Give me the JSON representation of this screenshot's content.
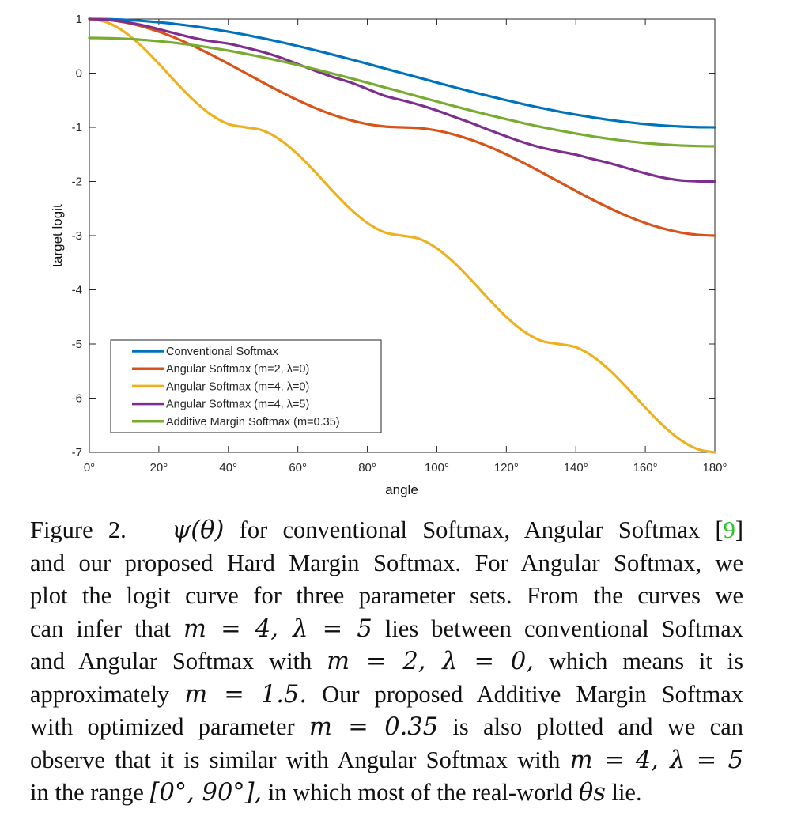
{
  "chart_data": {
    "type": "line",
    "xlabel": "angle",
    "ylabel": "target logit",
    "xlim": [
      0,
      180
    ],
    "ylim": [
      -7,
      1
    ],
    "x_ticks": [
      0,
      20,
      40,
      60,
      80,
      100,
      120,
      140,
      160,
      180
    ],
    "x_tick_labels": [
      "0°",
      "20°",
      "40°",
      "60°",
      "80°",
      "100°",
      "120°",
      "140°",
      "160°",
      "180°"
    ],
    "y_ticks": [
      1,
      0,
      -1,
      -2,
      -3,
      -4,
      -5,
      -6,
      -7
    ],
    "y_tick_labels": [
      "1",
      "0",
      "-1",
      "-2",
      "-3",
      "-4",
      "-5",
      "-6",
      "-7"
    ],
    "grid": false,
    "legend_position": "bottom-left",
    "x": [
      0,
      5,
      10,
      15,
      20,
      25,
      30,
      35,
      40,
      45,
      50,
      55,
      60,
      65,
      70,
      75,
      80,
      85,
      90,
      95,
      100,
      105,
      110,
      115,
      120,
      125,
      130,
      135,
      140,
      145,
      150,
      155,
      160,
      165,
      170,
      175,
      180
    ],
    "series": [
      {
        "name": "Conventional Softmax",
        "color": "#0072bd",
        "values": [
          1.0,
          0.996,
          0.985,
          0.966,
          0.94,
          0.906,
          0.866,
          0.819,
          0.766,
          0.707,
          0.643,
          0.574,
          0.5,
          0.423,
          0.342,
          0.259,
          0.174,
          0.087,
          0.0,
          -0.087,
          -0.174,
          -0.259,
          -0.342,
          -0.423,
          -0.5,
          -0.574,
          -0.643,
          -0.707,
          -0.766,
          -0.819,
          -0.866,
          -0.906,
          -0.94,
          -0.966,
          -0.985,
          -0.996,
          -1.0
        ]
      },
      {
        "name": "Angular Softmax (m=2, λ=0)",
        "color": "#d95319",
        "values": [
          1.0,
          0.985,
          0.94,
          0.866,
          0.766,
          0.643,
          0.5,
          0.342,
          0.174,
          0.0,
          -0.174,
          -0.342,
          -0.5,
          -0.643,
          -0.766,
          -0.866,
          -0.94,
          -0.985,
          -1.0,
          -1.015,
          -1.06,
          -1.134,
          -1.234,
          -1.357,
          -1.5,
          -1.658,
          -1.826,
          -2.0,
          -2.174,
          -2.342,
          -2.5,
          -2.643,
          -2.766,
          -2.866,
          -2.94,
          -2.985,
          -3.0
        ]
      },
      {
        "name": "Angular Softmax (m=4, λ=0)",
        "color": "#edb120",
        "values": [
          1.0,
          0.94,
          0.766,
          0.5,
          0.174,
          -0.174,
          -0.5,
          -0.766,
          -0.94,
          -1.0,
          -1.06,
          -1.234,
          -1.5,
          -1.826,
          -2.174,
          -2.5,
          -2.766,
          -2.94,
          -3.0,
          -3.06,
          -3.234,
          -3.5,
          -3.826,
          -4.174,
          -4.5,
          -4.766,
          -4.94,
          -5.0,
          -5.06,
          -5.234,
          -5.5,
          -5.826,
          -6.174,
          -6.5,
          -6.766,
          -6.94,
          -7.0
        ]
      },
      {
        "name": "Angular Softmax (m=4, λ=5)",
        "color": "#7e2f8e",
        "values": [
          1.0,
          0.987,
          0.949,
          0.889,
          0.812,
          0.728,
          0.65,
          0.59,
          0.545,
          0.471,
          0.39,
          0.288,
          0.167,
          0.043,
          -0.07,
          -0.168,
          -0.292,
          -0.419,
          -0.5,
          -0.587,
          -0.689,
          -0.806,
          -0.923,
          -1.047,
          -1.167,
          -1.279,
          -1.373,
          -1.442,
          -1.505,
          -1.588,
          -1.667,
          -1.759,
          -1.85,
          -1.928,
          -1.978,
          -1.996,
          -2.0
        ]
      },
      {
        "name": "Additive Margin Softmax (m=0.35)",
        "color": "#77ac30",
        "values": [
          0.65,
          0.646,
          0.635,
          0.616,
          0.59,
          0.556,
          0.516,
          0.469,
          0.416,
          0.357,
          0.293,
          0.224,
          0.15,
          0.073,
          -0.008,
          -0.091,
          -0.176,
          -0.263,
          -0.35,
          -0.437,
          -0.524,
          -0.609,
          -0.692,
          -0.773,
          -0.85,
          -0.924,
          -0.993,
          -1.057,
          -1.116,
          -1.169,
          -1.216,
          -1.256,
          -1.29,
          -1.316,
          -1.335,
          -1.346,
          -1.35
        ]
      }
    ]
  },
  "caption": {
    "figure_label": "Figure 2.",
    "line1_math": "ψ(θ)",
    "line1_text": "for conventional Softmax, Angular Softmax [",
    "line1_ref": "9",
    "line1_close": "]",
    "line2": "and our proposed Hard Margin Softmax. For Angular Softmax, we",
    "line3": "plot the logit curve for three parameter sets. From the curves we",
    "line4_a": "can infer that",
    "line4_math": "m = 4, λ = 5",
    "line4_b": "lies between conventional Softmax",
    "line5_a": "and Angular Softmax with",
    "line5_math": "m = 2, λ = 0,",
    "line5_b": "which means it is",
    "line6_a": "approximately",
    "line6_math": "m = 1.5.",
    "line6_b": "Our proposed Additive Margin Softmax",
    "line7_a": "with optimized parameter",
    "line7_math": "m = 0.35",
    "line7_b": "is also plotted and we can",
    "line8_a": "observe that it is similar with Angular Softmax with",
    "line8_math": "m = 4, λ = 5",
    "line9_a": "in the range",
    "line9_math": "[0°, 90°],",
    "line9_b": "in which most of the real-world",
    "line9_math2": "θs",
    "line9_c": "lie."
  }
}
